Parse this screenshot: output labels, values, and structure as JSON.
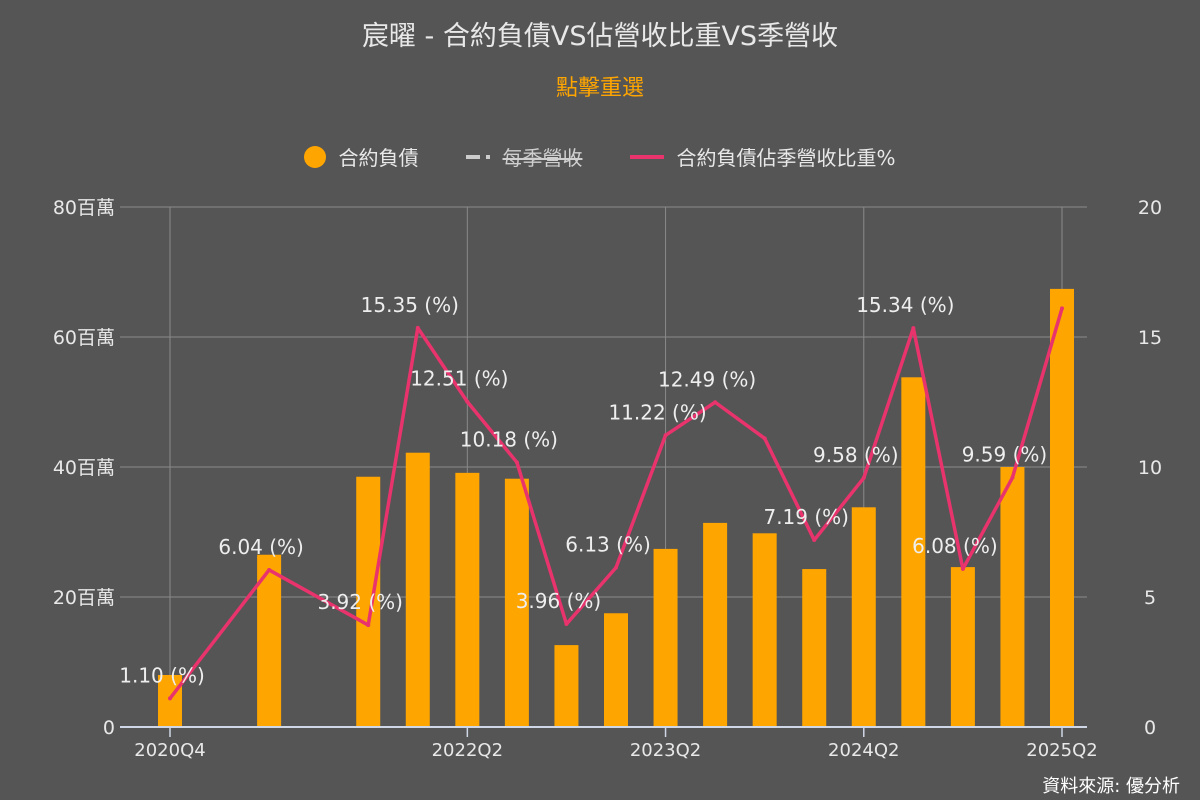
{
  "title": "宸曜 - 合約負債VS佔營收比重VS季營收",
  "subtitle": "點擊重選",
  "source": "資料來源: 優分析",
  "colors": {
    "bar": "#ffa500",
    "line": "#e8336d",
    "revenue": "#cccccc",
    "background": "#555555"
  },
  "chart_data": {
    "type": "bar+line",
    "categories": [
      "2020Q4",
      "2021Q1",
      "2021Q2",
      "2021Q3",
      "2021Q4",
      "2022Q1",
      "2022Q2",
      "2022Q3",
      "2022Q4",
      "2023Q1",
      "2023Q2",
      "2023Q3",
      "2023Q4",
      "2024Q1",
      "2024Q2",
      "2024Q3",
      "2024Q4",
      "2025Q1",
      "2025Q2"
    ],
    "x_tick_labels": [
      "2020Q4",
      "2022Q2",
      "2023Q2",
      "2024Q2",
      "2025Q2"
    ],
    "legend": [
      {
        "name": "合約負債",
        "marker": "circle",
        "visible": true
      },
      {
        "name": "每季營收",
        "marker": "dash",
        "visible": false
      },
      {
        "name": "合約負債佔季營收比重%",
        "marker": "line",
        "visible": true
      }
    ],
    "legend_position": "top-center",
    "series": [
      {
        "name": "合約負債",
        "type": "bar",
        "axis": "left",
        "unit": "百萬",
        "values": [
          8.0,
          null,
          26.5,
          null,
          38.5,
          42.2,
          39.1,
          38.2,
          12.6,
          17.5,
          27.4,
          31.4,
          29.8,
          24.3,
          33.8,
          53.8,
          24.6,
          40.0,
          67.4
        ]
      },
      {
        "name": "合約負債佔季營收比重%",
        "type": "line",
        "axis": "right",
        "values": [
          1.1,
          null,
          6.04,
          null,
          3.92,
          15.35,
          12.51,
          10.18,
          3.96,
          6.13,
          11.22,
          12.49,
          11.1,
          7.19,
          9.58,
          15.34,
          6.08,
          9.59,
          16.1
        ],
        "data_labels": [
          "1.10 (%)",
          null,
          "6.04 (%)",
          null,
          "3.92 (%)",
          "15.35 (%)",
          "12.51 (%)",
          "10.18 (%)",
          "3.96 (%)",
          "6.13 (%)",
          "11.22 (%)",
          "12.49 (%)",
          null,
          "7.19 (%)",
          "9.58 (%)",
          "15.34 (%)",
          "6.08 (%)",
          "9.59 (%)",
          null
        ]
      }
    ],
    "y_left": {
      "min": 0,
      "max": 80,
      "ticks": [
        0,
        20,
        40,
        60,
        80
      ],
      "tick_labels": [
        "0",
        "20百萬",
        "40百萬",
        "60百萬",
        "80百萬"
      ]
    },
    "y_right": {
      "min": 0,
      "max": 20,
      "ticks": [
        0,
        5,
        10,
        15,
        20
      ],
      "tick_labels": [
        "0",
        "5",
        "10",
        "15",
        "20"
      ]
    },
    "grid": true
  }
}
